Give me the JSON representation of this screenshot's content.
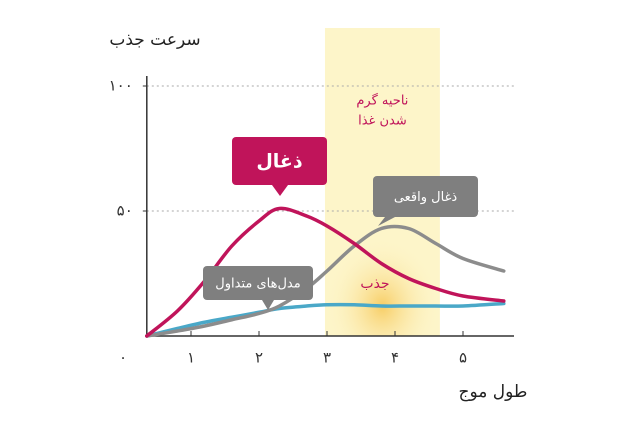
{
  "chart_data": {
    "type": "line",
    "y_label": "سرعت جذب",
    "x_label": "طول موج",
    "xlim": [
      0.35,
      5.75
    ],
    "ylim": [
      0,
      104
    ],
    "xticks": [
      {
        "value": 0,
        "label": "٠"
      },
      {
        "value": 1,
        "label": "١"
      },
      {
        "value": 2,
        "label": "٢"
      },
      {
        "value": 3,
        "label": "٣"
      },
      {
        "value": 4,
        "label": "۴"
      },
      {
        "value": 5,
        "label": "۵"
      }
    ],
    "yticks": [
      {
        "value": 50,
        "label": "۵٠"
      },
      {
        "value": 100,
        "label": "١٠٠"
      }
    ],
    "grid": true,
    "x": [
      0.35,
      0.8,
      1.2,
      1.6,
      2.0,
      2.3,
      2.7,
      3.0,
      3.4,
      3.8,
      4.2,
      4.6,
      5.0,
      5.6
    ],
    "series": [
      {
        "name": "ذغال",
        "color": "#c0145a",
        "values": [
          0,
          10,
          22,
          36,
          46,
          51,
          48,
          44,
          37,
          29,
          23,
          19,
          16,
          14
        ]
      },
      {
        "name": "ذغال واقعی",
        "color": "#8c8c8c",
        "values": [
          0,
          2,
          4,
          6.5,
          9,
          12,
          19,
          26,
          36,
          43,
          43,
          37,
          31,
          26
        ]
      },
      {
        "name": "مدل‌های متداول",
        "color": "#4aa8c8",
        "values": [
          0,
          3,
          5.5,
          7.5,
          9.5,
          11,
          12,
          12.5,
          12.5,
          12,
          12,
          12,
          12,
          13
        ]
      }
    ],
    "band": {
      "x": [
        2.97,
        4.66
      ],
      "color": "#fdf5c9",
      "label": [
        "ناحیه گرم",
        "شدن غذا"
      ]
    },
    "annotation": {
      "text": "جذب",
      "color": "#c0145a"
    }
  }
}
